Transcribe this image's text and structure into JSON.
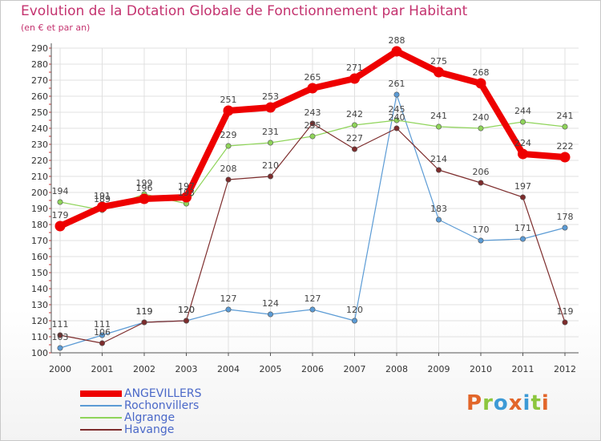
{
  "header": {
    "title": "Evolution de la Dotation Globale de Fonctionnement par Habitant",
    "subtitle": "(en € et par an)"
  },
  "logo": {
    "letters": [
      "P",
      "r",
      "o",
      "x",
      "i",
      "t",
      "i"
    ],
    "colors": [
      "#e2662a",
      "#8cc63e",
      "#3d9ad6",
      "#e2662a",
      "#3d9ad6",
      "#8cc63e",
      "#e2662a"
    ]
  },
  "chart_data": {
    "type": "line",
    "title": "Evolution de la Dotation Globale de Fonctionnement par Habitant",
    "subtitle": "(en € et par an)",
    "xlabel": "",
    "ylabel": "",
    "categories": [
      "2000",
      "2001",
      "2002",
      "2003",
      "2004",
      "2005",
      "2006",
      "2007",
      "2008",
      "2009",
      "2010",
      "2011",
      "2012"
    ],
    "ylim": [
      100,
      290
    ],
    "yticks": [
      100,
      110,
      120,
      130,
      140,
      150,
      160,
      170,
      180,
      190,
      200,
      210,
      220,
      230,
      240,
      250,
      260,
      270,
      280,
      290
    ],
    "grid": true,
    "legend_position": "bottom-left",
    "series": [
      {
        "name": "ANGEVILLERS",
        "color": "#ee0000",
        "emphasis": true,
        "values": [
          179,
          191,
          196,
          197,
          251,
          253,
          265,
          271,
          288,
          275,
          268,
          224,
          222
        ],
        "labels": [
          "179",
          "191",
          "196",
          "197",
          "251",
          "253",
          "265",
          "271",
          "288",
          "275",
          "268",
          "224",
          "222"
        ]
      },
      {
        "name": "Rochonvillers",
        "color": "#5b9bd5",
        "emphasis": false,
        "values": [
          103,
          111,
          119,
          120,
          127,
          124,
          127,
          120,
          261,
          183,
          170,
          171,
          178
        ],
        "labels": [
          "103",
          "111",
          "119",
          "120",
          "127",
          "124",
          "127",
          "120",
          "261",
          "183",
          "170",
          "171",
          "178"
        ]
      },
      {
        "name": "Algrange",
        "color": "#8fd45a",
        "emphasis": false,
        "values": [
          194,
          189,
          199,
          193,
          229,
          231,
          235,
          242,
          245,
          241,
          240,
          244,
          241
        ],
        "labels": [
          "194",
          "189",
          "199",
          "193",
          "229",
          "231",
          "235",
          "242",
          "245",
          "241",
          "240",
          "244",
          "241"
        ]
      },
      {
        "name": "Havange",
        "color": "#7d2c2c",
        "emphasis": false,
        "values": [
          111,
          106,
          119,
          120,
          208,
          210,
          243,
          227,
          240,
          214,
          206,
          197,
          119
        ],
        "labels": [
          "111",
          "106",
          "119",
          "120",
          "208",
          "210",
          "243",
          "227",
          "240",
          "214",
          "206",
          "197",
          "119"
        ]
      }
    ]
  }
}
